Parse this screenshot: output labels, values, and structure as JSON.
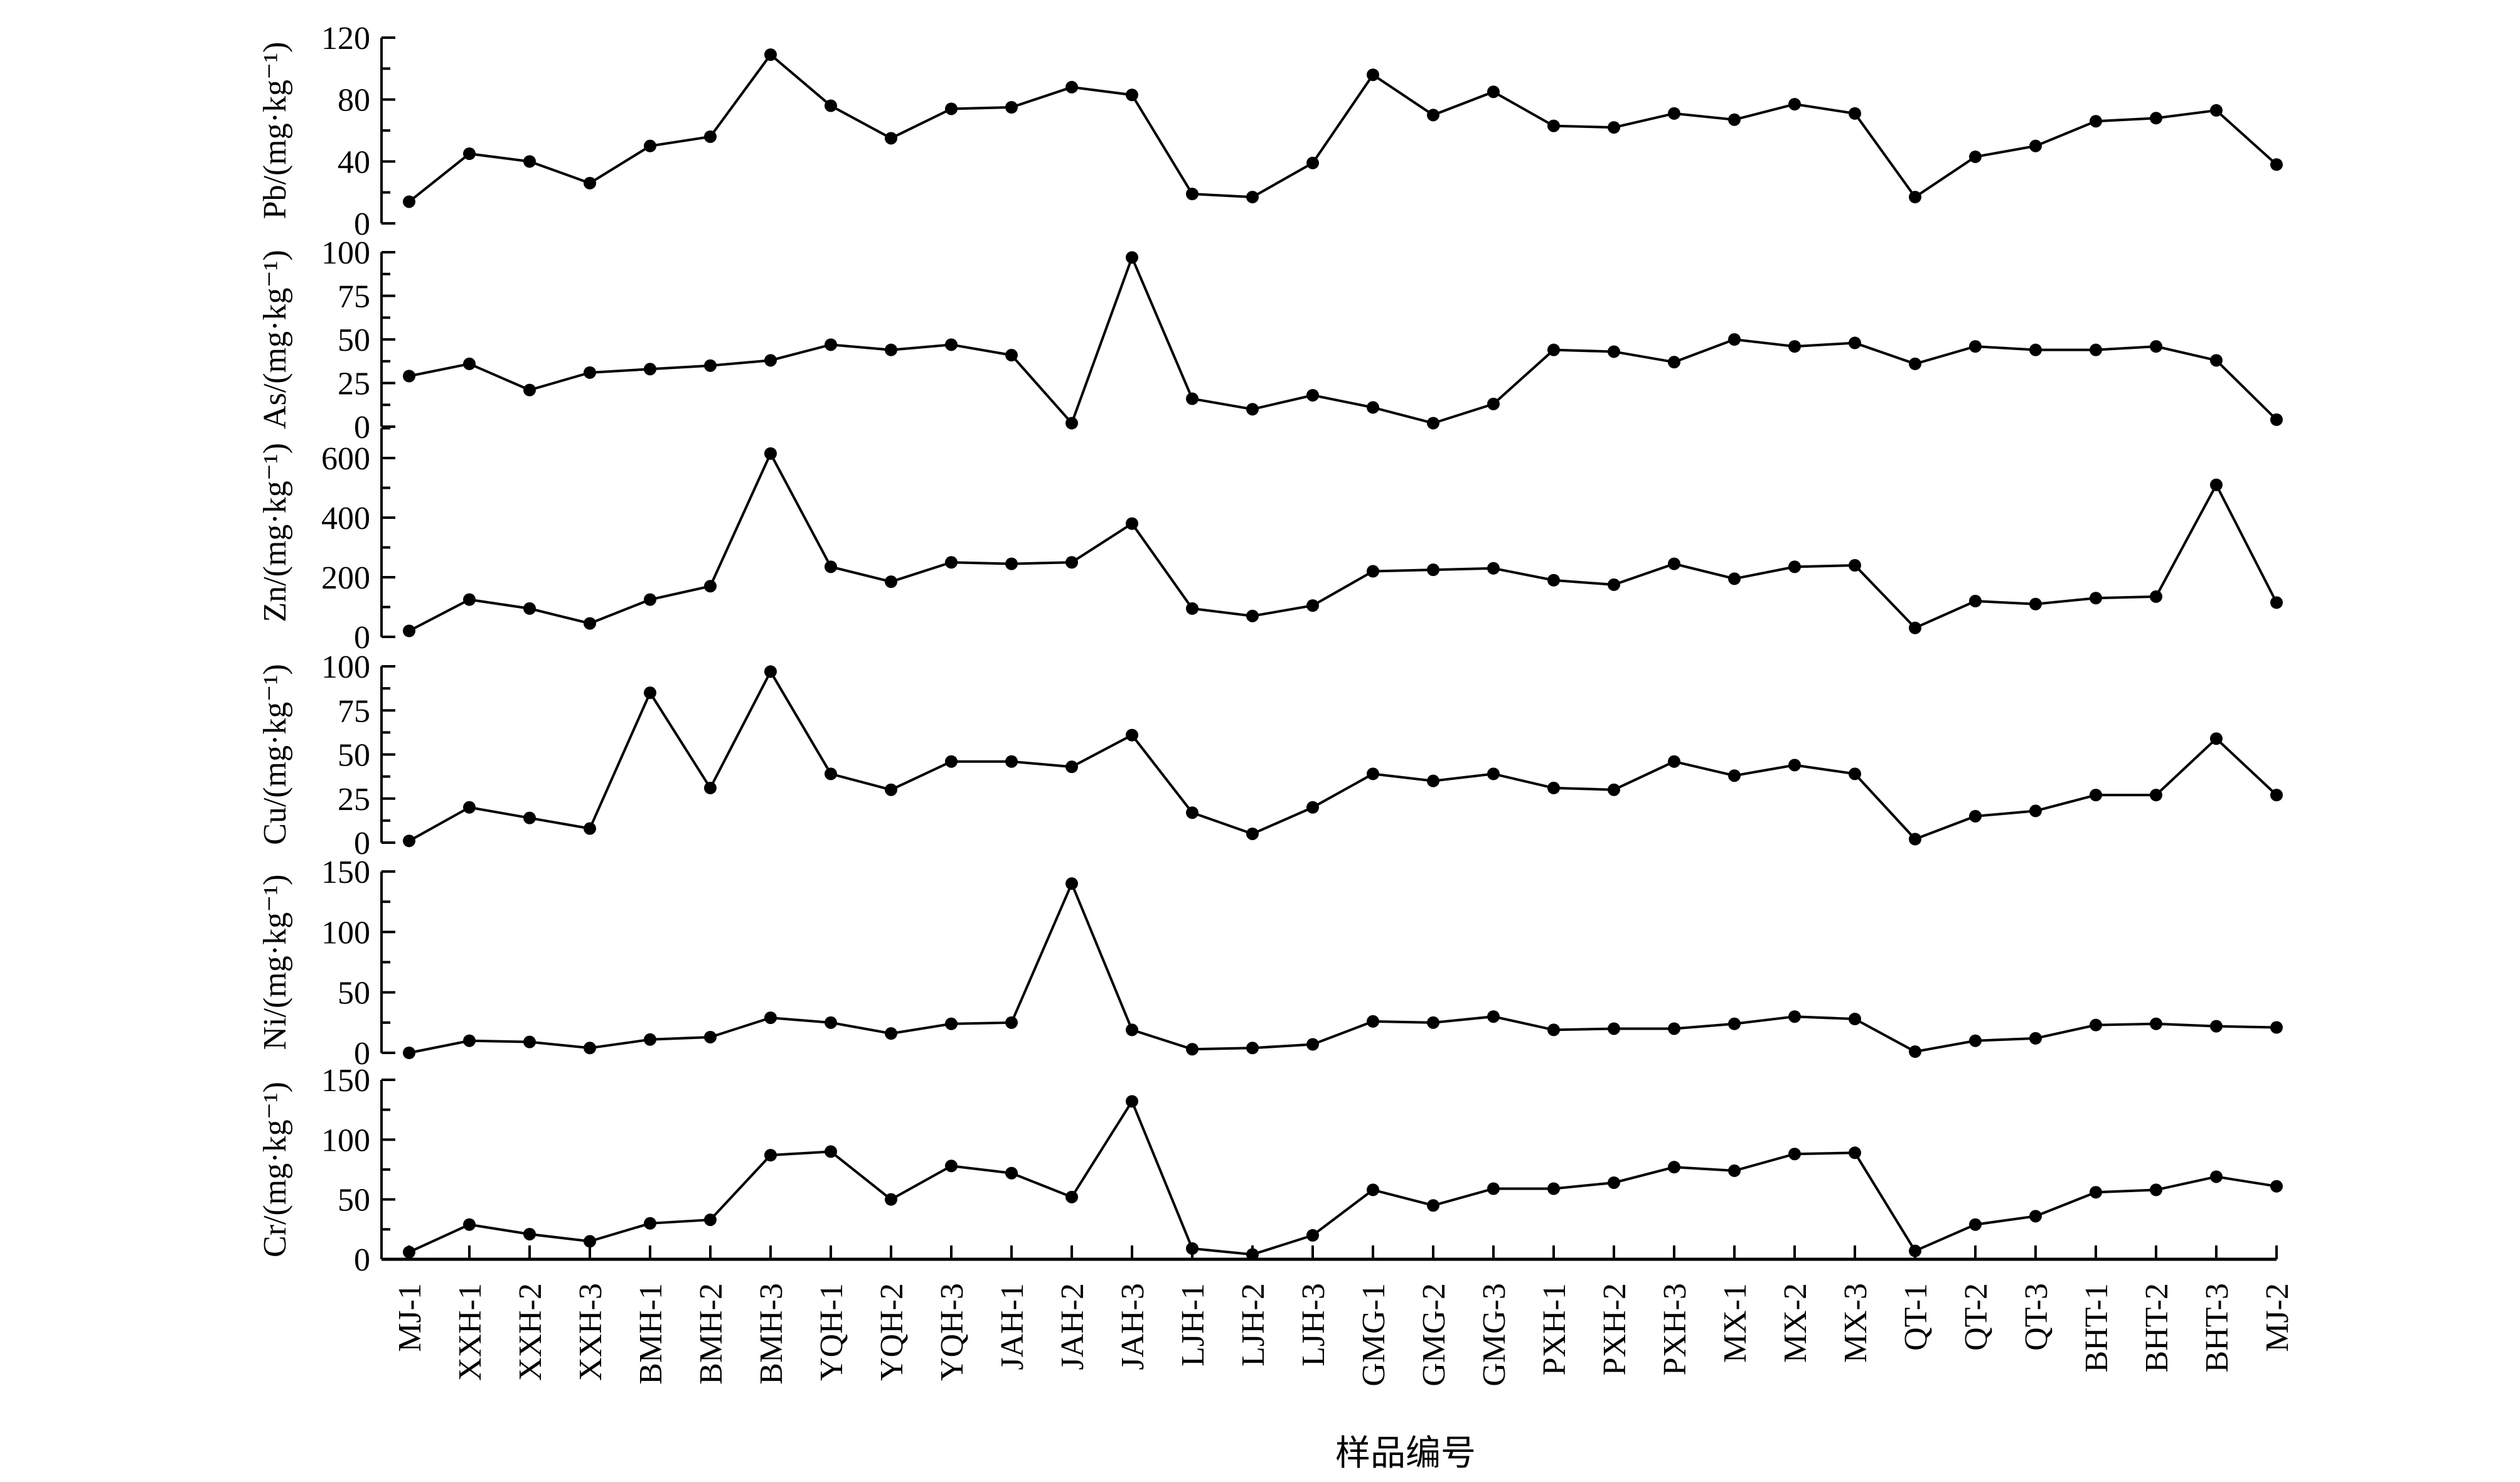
{
  "chart_data": [
    {
      "type": "line",
      "ylabel": "Pb/(mg·kg⁻¹)",
      "ylim": [
        0,
        120
      ],
      "yticks": [
        0,
        40,
        80,
        120
      ],
      "values": [
        14,
        45,
        40,
        26,
        50,
        56,
        109,
        76,
        55,
        74,
        75,
        88,
        83,
        19,
        17,
        39,
        96,
        70,
        85,
        63,
        62,
        71,
        67,
        77,
        71,
        17,
        43,
        50,
        66,
        68,
        73,
        38
      ]
    },
    {
      "type": "line",
      "ylabel": "As/(mg·kg⁻¹)",
      "ylim": [
        0,
        100
      ],
      "yticks": [
        0,
        25,
        50,
        75,
        100
      ],
      "values": [
        29,
        36,
        21,
        31,
        33,
        35,
        38,
        47,
        44,
        47,
        41,
        2,
        97,
        16,
        10,
        18,
        11,
        2,
        13,
        44,
        43,
        37,
        50,
        46,
        48,
        36,
        46,
        44,
        44,
        46,
        38,
        4
      ]
    },
    {
      "type": "line",
      "ylabel": "Zn/(mg·kg⁻¹)",
      "ylim": [
        0,
        700
      ],
      "yticks": [
        0,
        200,
        400,
        600
      ],
      "values": [
        20,
        125,
        95,
        45,
        125,
        170,
        615,
        235,
        185,
        250,
        245,
        250,
        380,
        95,
        70,
        105,
        220,
        225,
        230,
        190,
        175,
        245,
        195,
        235,
        240,
        30,
        120,
        110,
        130,
        135,
        510,
        115
      ]
    },
    {
      "type": "line",
      "ylabel": "Cu/(mg·kg⁻¹)",
      "ylim": [
        0,
        100
      ],
      "yticks": [
        0,
        25,
        50,
        75,
        100
      ],
      "values": [
        1,
        20,
        14,
        8,
        85,
        31,
        97,
        39,
        30,
        46,
        46,
        43,
        61,
        17,
        5,
        20,
        39,
        35,
        39,
        31,
        30,
        46,
        38,
        44,
        39,
        2,
        15,
        18,
        27,
        27,
        59,
        27
      ]
    },
    {
      "type": "line",
      "ylabel": "Ni/(mg·kg⁻¹)",
      "ylim": [
        0,
        150
      ],
      "yticks": [
        0,
        50,
        100,
        150
      ],
      "values": [
        0,
        10,
        9,
        4,
        11,
        13,
        29,
        25,
        16,
        24,
        25,
        140,
        19,
        3,
        4,
        7,
        26,
        25,
        30,
        19,
        20,
        20,
        24,
        30,
        28,
        1,
        10,
        12,
        23,
        24,
        22,
        21
      ]
    },
    {
      "type": "line",
      "ylabel": "Cr/(mg·kg⁻¹)",
      "ylim": [
        0,
        150
      ],
      "yticks": [
        0,
        50,
        100,
        150
      ],
      "values": [
        6,
        29,
        21,
        15,
        30,
        33,
        87,
        90,
        50,
        78,
        72,
        52,
        132,
        9,
        4,
        20,
        58,
        45,
        59,
        59,
        64,
        77,
        74,
        88,
        89,
        7,
        29,
        36,
        56,
        58,
        69,
        61
      ]
    }
  ],
  "categories": [
    "MJ-1",
    "XXH-1",
    "XXH-2",
    "XXH-3",
    "BMH-1",
    "BMH-2",
    "BMH-3",
    "YQH-1",
    "YQH-2",
    "YQH-3",
    "JAH-1",
    "JAH-2",
    "JAH-3",
    "LJH-1",
    "LJH-2",
    "LJH-3",
    "GMG-1",
    "GMG-2",
    "GMG-3",
    "PXH-1",
    "PXH-2",
    "PXH-3",
    "MX-1",
    "MX-2",
    "MX-3",
    "QT-1",
    "QT-2",
    "QT-3",
    "BHT-1",
    "BHT-2",
    "BHT-3",
    "MJ-2"
  ],
  "xlabel": "样品编号",
  "grid": false,
  "color": "#000000"
}
